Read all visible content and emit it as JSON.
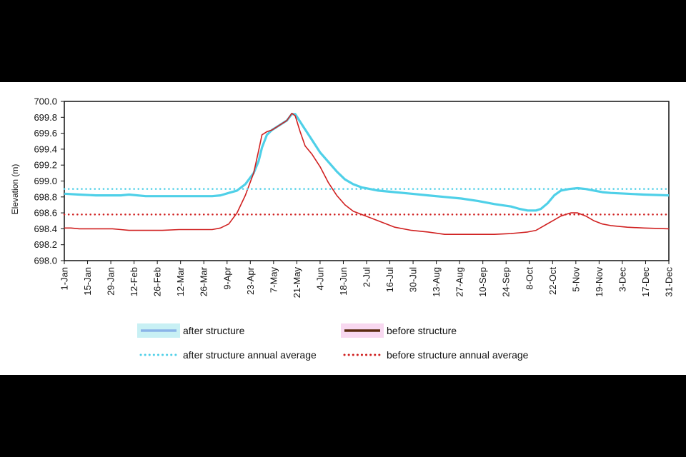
{
  "chart_data": {
    "type": "line",
    "title": "",
    "xlabel": "",
    "ylabel": "Elevation (m)",
    "ylim": [
      698.0,
      700.0
    ],
    "yticks": [
      "698.0",
      "698.2",
      "698.4",
      "698.6",
      "698.8",
      "699.0",
      "699.2",
      "699.4",
      "699.6",
      "699.8",
      "700.0"
    ],
    "xticks": [
      "1-Jan",
      "15-Jan",
      "29-Jan",
      "12-Feb",
      "26-Feb",
      "12-Mar",
      "26-Mar",
      "9-Apr",
      "23-Apr",
      "7-May",
      "21-May",
      "4-Jun",
      "18-Jun",
      "2-Jul",
      "16-Jul",
      "30-Jul",
      "13-Aug",
      "27-Aug",
      "10-Sep",
      "24-Sep",
      "8-Oct",
      "22-Oct",
      "5-Nov",
      "19-Nov",
      "3-Dec",
      "17-Dec",
      "31-Dec"
    ],
    "grid": false,
    "legend_position": "bottom",
    "series": [
      {
        "name": "after structure",
        "color": "#4fd0e8",
        "style": "solid",
        "x": [
          1,
          10,
          20,
          30,
          35,
          40,
          50,
          60,
          70,
          80,
          90,
          95,
          100,
          105,
          110,
          115,
          118,
          120,
          123,
          126,
          129,
          132,
          135,
          138,
          140,
          145,
          150,
          155,
          160,
          165,
          170,
          175,
          180,
          190,
          200,
          210,
          220,
          230,
          240,
          250,
          260,
          270,
          275,
          280,
          285,
          288,
          292,
          296,
          300,
          305,
          310,
          315,
          320,
          325,
          330,
          340,
          350,
          365
        ],
        "y": [
          698.84,
          698.83,
          698.82,
          698.82,
          698.82,
          698.83,
          698.81,
          698.81,
          698.81,
          698.81,
          698.81,
          698.82,
          698.85,
          698.88,
          698.96,
          699.1,
          699.25,
          699.42,
          699.58,
          699.64,
          699.68,
          699.72,
          699.76,
          699.84,
          699.84,
          699.68,
          699.52,
          699.36,
          699.24,
          699.12,
          699.02,
          698.96,
          698.92,
          698.88,
          698.86,
          698.84,
          698.82,
          698.8,
          698.78,
          698.75,
          698.71,
          698.68,
          698.65,
          698.63,
          698.63,
          698.65,
          698.72,
          698.82,
          698.88,
          698.9,
          698.91,
          698.9,
          698.88,
          698.86,
          698.85,
          698.84,
          698.83,
          698.82
        ]
      },
      {
        "name": "before structure",
        "color": "#d02020",
        "style": "solid",
        "x": [
          1,
          5,
          10,
          20,
          30,
          35,
          40,
          50,
          60,
          70,
          80,
          90,
          95,
          100,
          105,
          110,
          115,
          118,
          120,
          123,
          126,
          129,
          132,
          135,
          138,
          140,
          143,
          146,
          150,
          155,
          160,
          165,
          170,
          175,
          180,
          190,
          200,
          210,
          220,
          230,
          240,
          250,
          260,
          270,
          275,
          280,
          285,
          290,
          295,
          300,
          303,
          306,
          310,
          315,
          320,
          325,
          330,
          340,
          350,
          365
        ],
        "y": [
          698.41,
          698.41,
          698.4,
          698.4,
          698.4,
          698.39,
          698.38,
          698.38,
          698.38,
          698.39,
          698.39,
          698.39,
          698.41,
          698.46,
          698.6,
          698.82,
          699.1,
          699.38,
          699.58,
          699.62,
          699.64,
          699.68,
          699.72,
          699.76,
          699.85,
          699.82,
          699.62,
          699.44,
          699.34,
          699.18,
          698.98,
          698.82,
          698.7,
          698.62,
          698.58,
          698.5,
          698.42,
          698.38,
          698.36,
          698.33,
          698.33,
          698.33,
          698.33,
          698.34,
          698.35,
          698.36,
          698.38,
          698.44,
          698.5,
          698.56,
          698.58,
          698.6,
          698.6,
          698.56,
          698.5,
          698.46,
          698.44,
          698.42,
          698.41,
          698.4
        ]
      },
      {
        "name": "after structure annual average",
        "color": "#4fd0e8",
        "style": "dotted",
        "value": 698.9
      },
      {
        "name": "before structure annual average",
        "color": "#d02020",
        "style": "dotted",
        "value": 698.58
      }
    ]
  },
  "legend": {
    "after_structure": "after structure",
    "before_structure": "before structure",
    "after_avg": "after structure annual average",
    "before_avg": "before structure annual average",
    "swatch_after": "#8ab4e8",
    "swatch_before": "#5a2a10",
    "highlight_after": "#c8f0f4",
    "highlight_before": "#f8d8f0"
  }
}
